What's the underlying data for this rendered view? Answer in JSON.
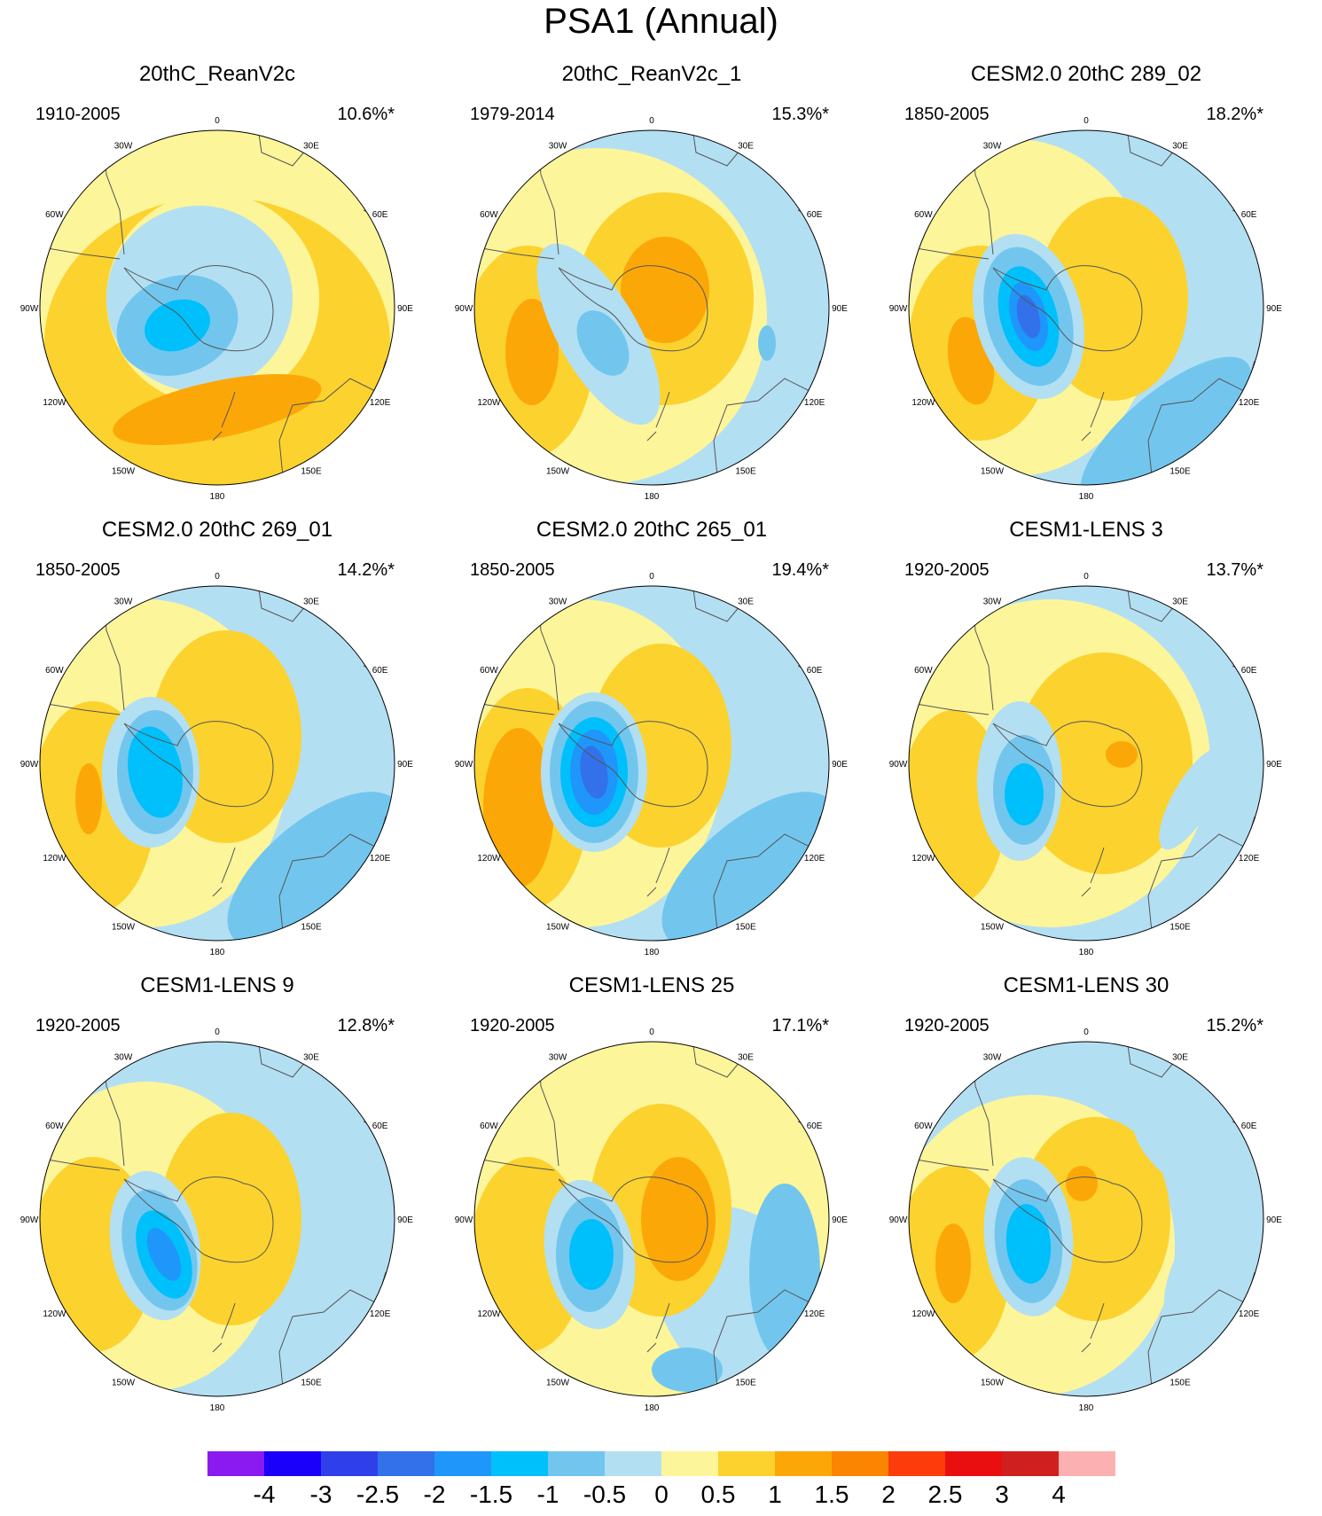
{
  "title": "PSA1 (Annual)",
  "colors": {
    "y": "#fdf59a",
    "o1": "#fcd22e",
    "o2": "#fca708",
    "o3": "#fb8400",
    "b0": "#b3dff3",
    "b1": "#72c6ee",
    "b2": "#00c0fb",
    "b3": "#1f96fa",
    "b4": "#3271ea",
    "land": "#555555"
  },
  "lon_labels": [
    "0",
    "30E",
    "60E",
    "90E",
    "120E",
    "150E",
    "180",
    "150W",
    "120W",
    "90W",
    "60W",
    "30W"
  ],
  "panels": [
    {
      "title": "20thC_ReanV2c",
      "period": "1910-2005",
      "pct": "10.6%*"
    },
    {
      "title": "20thC_ReanV2c_1",
      "period": "1979-2014",
      "pct": "15.3%*"
    },
    {
      "title": "CESM2.0 20thC 289_02",
      "period": "1850-2005",
      "pct": "18.2%*"
    },
    {
      "title": "CESM2.0 20thC 269_01",
      "period": "1850-2005",
      "pct": "14.2%*"
    },
    {
      "title": "CESM2.0 20thC 265_01",
      "period": "1850-2005",
      "pct": "19.4%*"
    },
    {
      "title": "CESM1-LENS 3",
      "period": "1920-2005",
      "pct": "13.7%*"
    },
    {
      "title": "CESM1-LENS 9",
      "period": "1920-2005",
      "pct": "12.8%*"
    },
    {
      "title": "CESM1-LENS 25",
      "period": "1920-2005",
      "pct": "17.1%*"
    },
    {
      "title": "CESM1-LENS 30",
      "period": "1920-2005",
      "pct": "15.2%*"
    }
  ],
  "colorbar": {
    "colors": [
      "#8a1aef",
      "#1a00fb",
      "#2f3fea",
      "#3271ea",
      "#1f96fa",
      "#00c0fb",
      "#72c6ee",
      "#b3dff3",
      "#fdf59a",
      "#fcd22e",
      "#fca708",
      "#fb8400",
      "#fc3c0a",
      "#e90f11",
      "#d01f1f",
      "#fbb1b1"
    ],
    "labels": [
      "-4",
      "-3",
      "-2.5",
      "-2",
      "-1.5",
      "-1",
      "-0.5",
      "0",
      "0.5",
      "1",
      "1.5",
      "2",
      "2.5",
      "3",
      "4"
    ]
  }
}
